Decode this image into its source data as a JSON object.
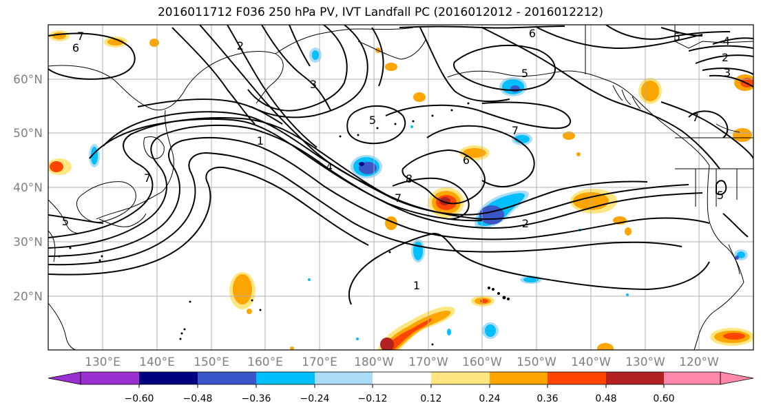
{
  "title": "2016011712 F036 250 hPa PV, IVT Landfall PC (2016012012 - 2016012212)",
  "map": {
    "lat_labels": [
      "20°N",
      "30°N",
      "40°N",
      "50°N",
      "60°N"
    ],
    "lon_labels": [
      "130°E",
      "140°E",
      "150°E",
      "160°E",
      "170°E",
      "180°W",
      "170°W",
      "160°W",
      "150°W",
      "140°W",
      "130°W",
      "120°W"
    ],
    "contour_labels": [
      "7",
      "6",
      "2",
      "3",
      "1",
      "5",
      "7",
      "4",
      "5",
      "7",
      "6",
      "8",
      "7",
      "2",
      "1",
      "6",
      "5",
      "2",
      "3",
      "5",
      "5",
      "4",
      "7"
    ]
  },
  "colorbar": {
    "colors": [
      "#9b30d0",
      "#000080",
      "#3a56c8",
      "#00bfff",
      "#aadcf8",
      "#ffffff",
      "#ffe680",
      "#ffa500",
      "#ff4500",
      "#b22222",
      "#ff88aa"
    ],
    "tick_labels": [
      "−0.60",
      "−0.48",
      "−0.36",
      "−0.24",
      "−0.12",
      "0.12",
      "0.24",
      "0.36",
      "0.48",
      "0.60"
    ]
  }
}
